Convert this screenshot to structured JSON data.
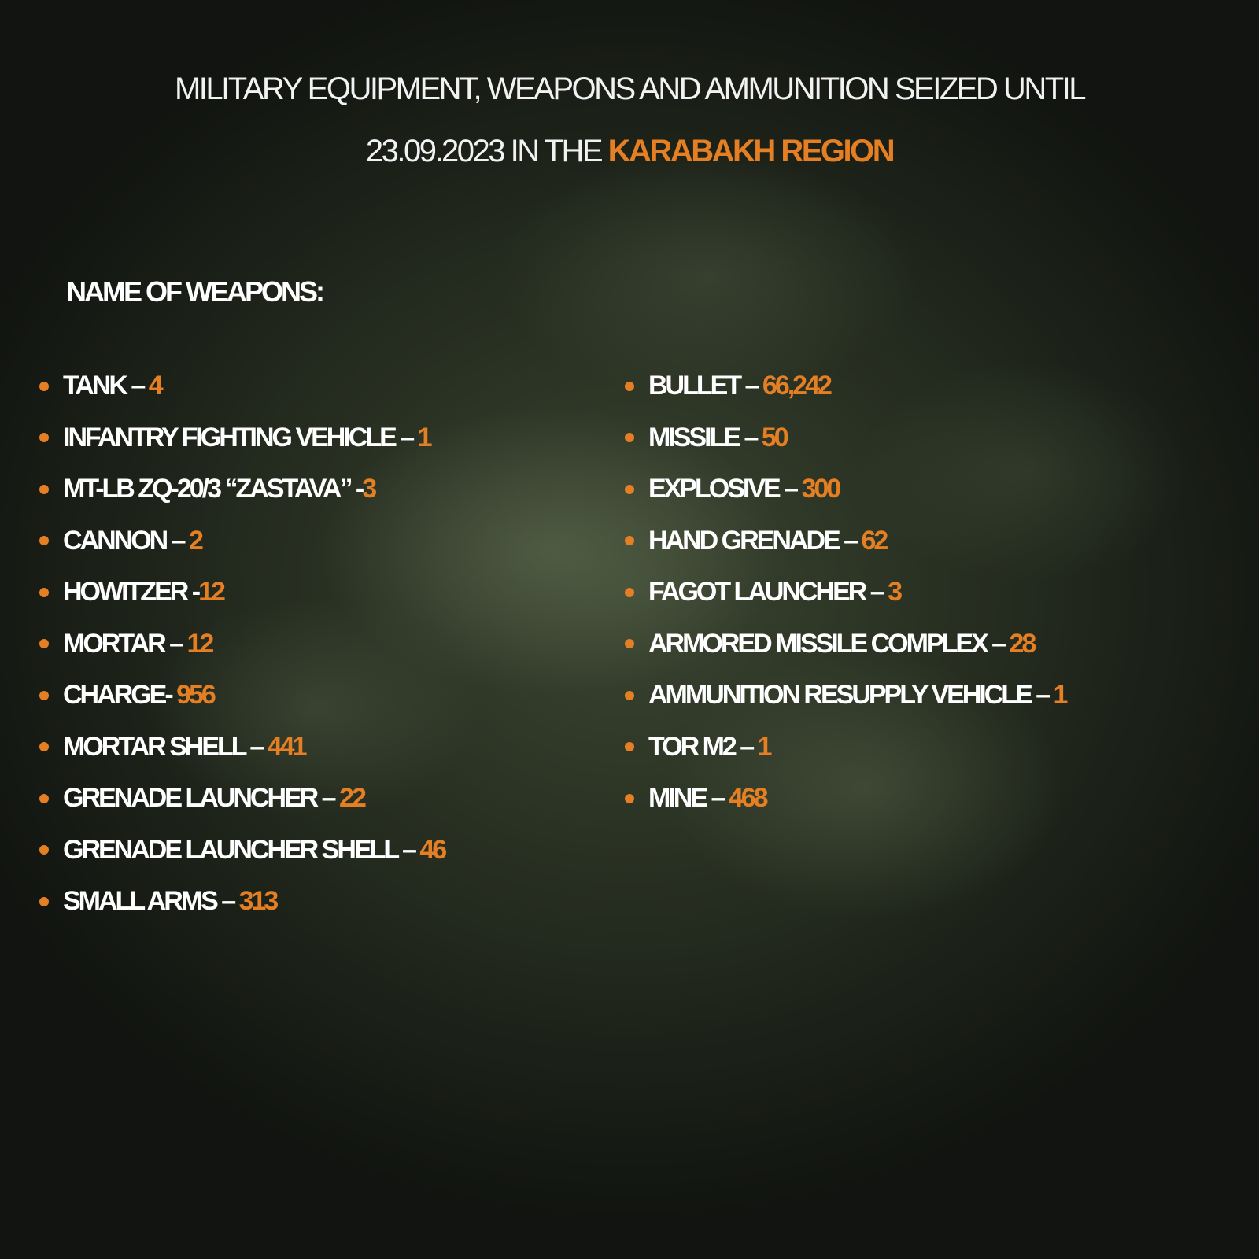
{
  "title": {
    "line1": "MILITARY EQUIPMENT, WEAPONS AND AMMUNITION SEIZED UNTIL",
    "line2_prefix": "23.09.2023 IN THE ",
    "line2_highlight": "KARABAKH REGION"
  },
  "heading": "NAME OF WEAPONS:",
  "accent_color": "#e57f24",
  "left_items": [
    {
      "label": "TANK – ",
      "value": "4"
    },
    {
      "label": "INFANTRY FIGHTING VEHICLE – ",
      "value": "1"
    },
    {
      "label": "MT-LB ZQ-20/3 “ZASTAVA” -",
      "value": "3"
    },
    {
      "label": "CANNON – ",
      "value": "2"
    },
    {
      "label": "HOWITZER -",
      "value": "12"
    },
    {
      "label": "MORTAR – ",
      "value": "12"
    },
    {
      "label": "CHARGE- ",
      "value": "956"
    },
    {
      "label": "MORTAR SHELL – ",
      "value": "441"
    },
    {
      "label": "GRENADE LAUNCHER – ",
      "value": "22"
    },
    {
      "label": "GRENADE LAUNCHER SHELL – ",
      "value": "46"
    },
    {
      "label": "SMALL ARMS – ",
      "value": "313"
    }
  ],
  "right_items": [
    {
      "label": "BULLET – ",
      "value": "66,242"
    },
    {
      "label": "MISSILE – ",
      "value": "50"
    },
    {
      "label": "EXPLOSIVE – ",
      "value": "300"
    },
    {
      "label": "HAND GRENADE – ",
      "value": "62"
    },
    {
      "label": "FAGOT LAUNCHER – ",
      "value": "3"
    },
    {
      "label": "ARMORED MISSILE COMPLEX – ",
      "value": "28"
    },
    {
      "label": "AMMUNITION RESUPPLY VEHICLE – ",
      "value": "1"
    },
    {
      "label": "TOR M2  – ",
      "value": "1"
    },
    {
      "label": "MINE  – ",
      "value": "468"
    }
  ]
}
